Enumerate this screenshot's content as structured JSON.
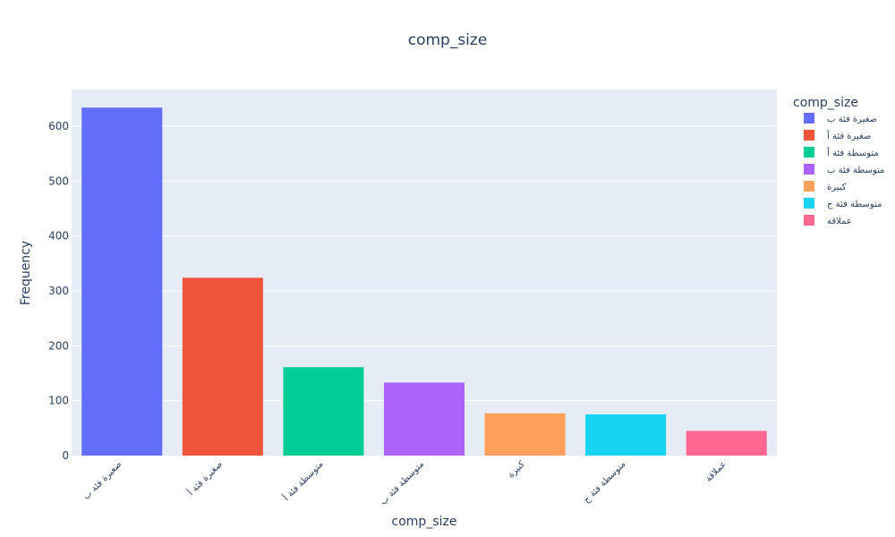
{
  "chart_data": {
    "type": "bar",
    "title": "comp_size",
    "xlabel": "comp_size",
    "ylabel": "Frequency",
    "categories": [
      "صغيرة فئة ب",
      "صغيرة فئة أ",
      "متوسطة فئة أ",
      "متوسطة فئة ب",
      "كبيرة",
      "متوسطة فئة ج",
      "عملاقة"
    ],
    "values": [
      634,
      324,
      161,
      133,
      77,
      75,
      45
    ],
    "colors": [
      "#636efa",
      "#EF553B",
      "#00cc96",
      "#ab63fa",
      "#FFA15A",
      "#19d3f3",
      "#FF6692"
    ],
    "ylim": [
      0,
      667
    ],
    "yticks": [
      0,
      100,
      200,
      300,
      400,
      500,
      600
    ],
    "grid": true,
    "legend": {
      "title": "comp_size",
      "position": "right",
      "entries": [
        "صغيرة فئة ب",
        "صغيرة فئة أ",
        "متوسطة فئة أ",
        "متوسطة فئة ب",
        "كبيرة",
        "متوسطة فئة ج",
        "عملاقة"
      ]
    },
    "plot_background": "#e5ecf6",
    "gridline_color": "#ffffff",
    "text_color": "#2a3f5f"
  }
}
